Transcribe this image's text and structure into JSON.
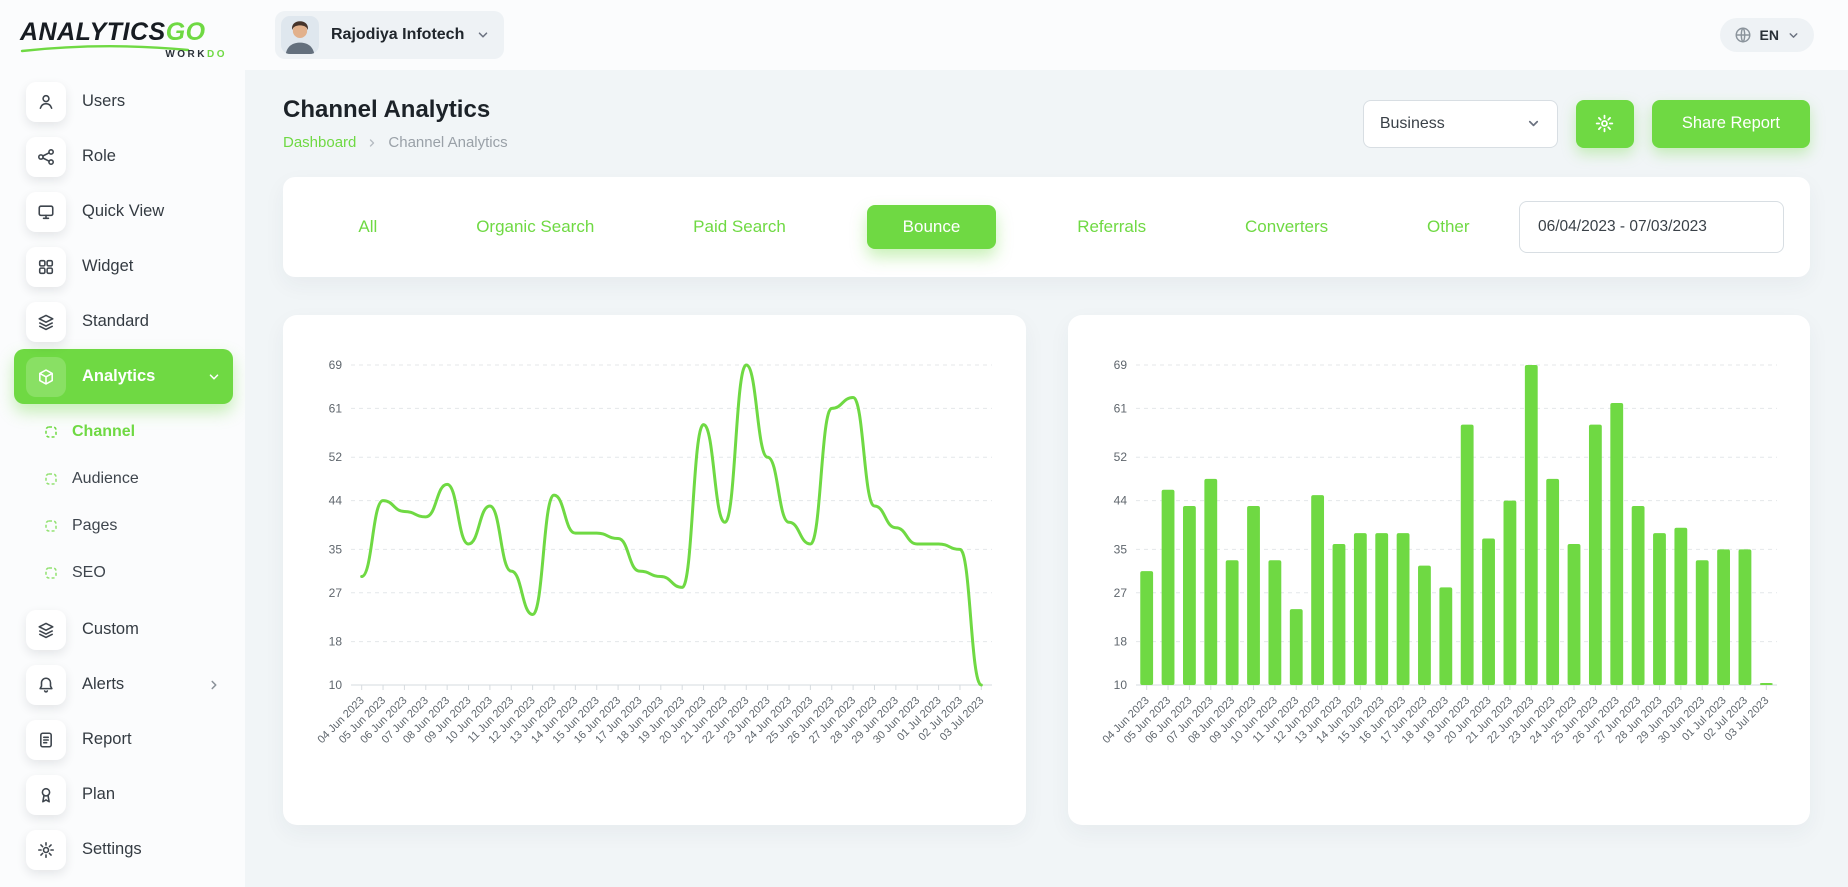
{
  "brand": {
    "name_a": "ANALYTICS",
    "name_b": "GO",
    "sub_a": "WORK",
    "sub_b": "DO"
  },
  "topbar": {
    "company": "Rajodiya Infotech",
    "language": "EN"
  },
  "sidebar": {
    "items": [
      {
        "label": "Users",
        "icon": "user-icon"
      },
      {
        "label": "Role",
        "icon": "share-icon"
      },
      {
        "label": "Quick View",
        "icon": "monitor-icon"
      },
      {
        "label": "Widget",
        "icon": "grid-icon"
      },
      {
        "label": "Standard",
        "icon": "layers-icon"
      },
      {
        "label": "Analytics",
        "icon": "cube-icon",
        "active": true,
        "expanded": true
      },
      {
        "label": "Custom",
        "icon": "layers-icon"
      },
      {
        "label": "Alerts",
        "icon": "bell-icon",
        "has_submenu": true
      },
      {
        "label": "Report",
        "icon": "document-icon"
      },
      {
        "label": "Plan",
        "icon": "trophy-icon"
      },
      {
        "label": "Settings",
        "icon": "gear-icon"
      }
    ],
    "analytics_children": [
      {
        "label": "Channel",
        "active": true
      },
      {
        "label": "Audience",
        "active": false
      },
      {
        "label": "Pages",
        "active": false
      },
      {
        "label": "SEO",
        "active": false
      }
    ]
  },
  "page": {
    "title": "Channel Analytics",
    "breadcrumb_home": "Dashboard",
    "breadcrumb_current": "Channel Analytics",
    "report_type": "Business",
    "share_label": "Share Report"
  },
  "filters": {
    "tabs": [
      "All",
      "Organic Search",
      "Paid Search",
      "Bounce",
      "Referrals",
      "Converters",
      "Other"
    ],
    "active_tab": "Bounce",
    "date_range": "06/04/2023 - 07/03/2023"
  },
  "colors": {
    "accent": "#6fd943",
    "grid": "#e4e7ea",
    "tick_text": "#5f666d"
  },
  "chart_data": [
    {
      "type": "line",
      "title": "",
      "xlabel": "",
      "ylabel": "",
      "categories": [
        "04 Jun 2023",
        "05 Jun 2023",
        "06 Jun 2023",
        "07 Jun 2023",
        "08 Jun 2023",
        "09 Jun 2023",
        "10 Jun 2023",
        "11 Jun 2023",
        "12 Jun 2023",
        "13 Jun 2023",
        "14 Jun 2023",
        "15 Jun 2023",
        "16 Jun 2023",
        "17 Jun 2023",
        "18 Jun 2023",
        "19 Jun 2023",
        "20 Jun 2023",
        "21 Jun 2023",
        "22 Jun 2023",
        "23 Jun 2023",
        "24 Jun 2023",
        "25 Jun 2023",
        "26 Jun 2023",
        "27 Jun 2023",
        "28 Jun 2023",
        "29 Jun 2023",
        "30 Jun 2023",
        "01 Jul 2023",
        "02 Jul 2023",
        "03 Jul 2023"
      ],
      "values": [
        30,
        44,
        42,
        41,
        47,
        36,
        43,
        31,
        23,
        45,
        38,
        38,
        37,
        31,
        30,
        28,
        58,
        40,
        69,
        52,
        40,
        36,
        61,
        63,
        43,
        39,
        36,
        36,
        35,
        10
      ],
      "yticks": [
        10,
        18,
        27,
        35,
        44,
        52,
        61,
        69
      ],
      "ylim": [
        10,
        69
      ],
      "grid": true,
      "legend": "none",
      "color": "#6fd943"
    },
    {
      "type": "bar",
      "title": "",
      "xlabel": "",
      "ylabel": "",
      "categories": [
        "04 Jun 2023",
        "05 Jun 2023",
        "06 Jun 2023",
        "07 Jun 2023",
        "08 Jun 2023",
        "09 Jun 2023",
        "10 Jun 2023",
        "11 Jun 2023",
        "12 Jun 2023",
        "13 Jun 2023",
        "14 Jun 2023",
        "15 Jun 2023",
        "16 Jun 2023",
        "17 Jun 2023",
        "18 Jun 2023",
        "19 Jun 2023",
        "20 Jun 2023",
        "21 Jun 2023",
        "22 Jun 2023",
        "23 Jun 2023",
        "24 Jun 2023",
        "25 Jun 2023",
        "26 Jun 2023",
        "27 Jun 2023",
        "28 Jun 2023",
        "29 Jun 2023",
        "30 Jun 2023",
        "01 Jul 2023",
        "02 Jul 2023",
        "03 Jul 2023"
      ],
      "values": [
        31,
        46,
        43,
        48,
        33,
        43,
        33,
        24,
        45,
        36,
        38,
        38,
        38,
        32,
        28,
        58,
        37,
        44,
        69,
        48,
        36,
        58,
        62,
        43,
        38,
        39,
        33,
        35,
        35,
        10
      ],
      "yticks": [
        10,
        18,
        27,
        35,
        44,
        52,
        61,
        69
      ],
      "ylim": [
        10,
        69
      ],
      "grid": true,
      "legend": "none",
      "color": "#6fd943"
    }
  ]
}
